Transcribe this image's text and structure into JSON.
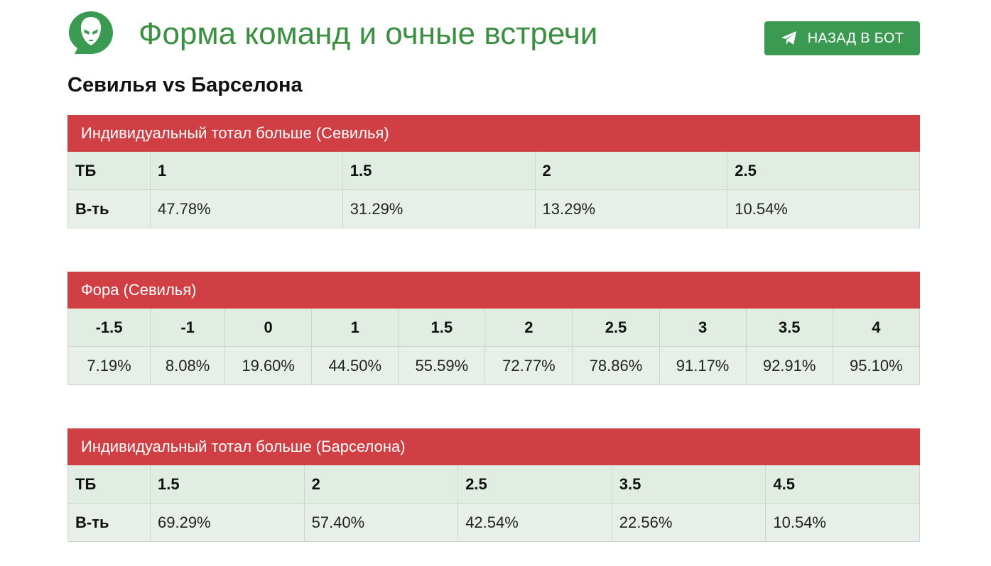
{
  "header": {
    "title": "Форма команд и очные встречи",
    "back_label": "НАЗАД В БОТ",
    "icons": {
      "logo": "alien-head-chat-logo",
      "back": "telegram-paper-plane-icon"
    }
  },
  "match_title": "Севилья vs Барселона",
  "colors": {
    "accent": "#3a9a52",
    "title": "#3b8f40",
    "table_header": "#d03f44",
    "cell_bg": "#e1ede2"
  },
  "table1": {
    "caption": "Индивидуальный тотал больше (Севилья)",
    "row1_label": "ТБ",
    "row2_label": "В-ть",
    "thresholds": [
      "1",
      "1.5",
      "2",
      "2.5"
    ],
    "probabilities": [
      "47.78%",
      "31.29%",
      "13.29%",
      "10.54%"
    ]
  },
  "table2": {
    "caption": "Фора (Севилья)",
    "handicaps": [
      "-1.5",
      "-1",
      "0",
      "1",
      "1.5",
      "2",
      "2.5",
      "3",
      "3.5",
      "4"
    ],
    "probabilities": [
      "7.19%",
      "8.08%",
      "19.60%",
      "44.50%",
      "55.59%",
      "72.77%",
      "78.86%",
      "91.17%",
      "92.91%",
      "95.10%"
    ]
  },
  "table3": {
    "caption": "Индивидуальный тотал больше (Барселона)",
    "row1_label": "ТБ",
    "row2_label": "В-ть",
    "thresholds": [
      "1.5",
      "2",
      "2.5",
      "3.5",
      "4.5"
    ],
    "probabilities": [
      "69.29%",
      "57.40%",
      "42.54%",
      "22.56%",
      "10.54%"
    ]
  }
}
